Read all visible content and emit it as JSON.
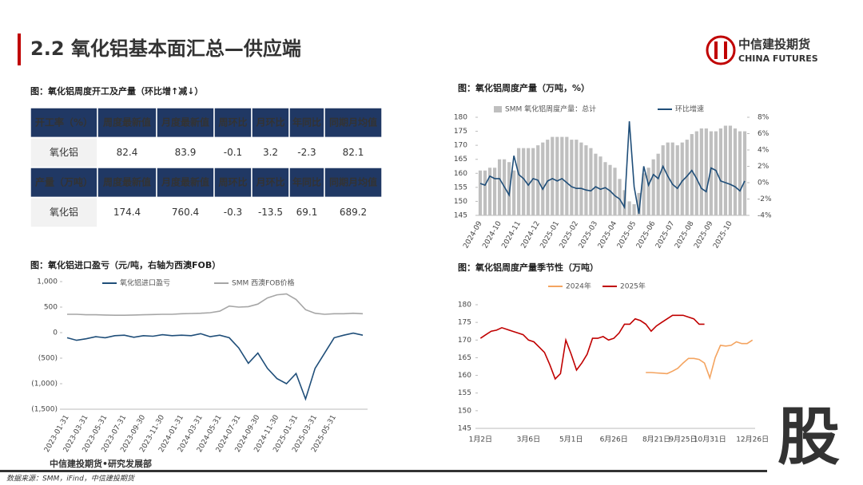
{
  "header": {
    "title": "2.2 氧化铝基本面汇总—供应端",
    "brand": "中信建投期货",
    "brand_en": "CHINA FUTURES"
  },
  "table": {
    "caption": "图：氧化铝周度开工及产量（环比增↑减↓）",
    "rows": [
      [
        "开工率（%）",
        "周度最新值",
        "月度最新值",
        "周环比",
        "月环比",
        "年同比",
        "同期月均值"
      ],
      [
        "氧化铝",
        82.4,
        83.9,
        -0.1,
        3.2,
        -2.3,
        82.1
      ],
      [
        "产量（万吨）",
        "周度最新值",
        "月度最新值",
        "周环比",
        "月环比",
        "年同比",
        "同期月均值"
      ],
      [
        "氧化铝",
        174.4,
        760.4,
        -0.3,
        -13.5,
        69.1,
        689.2
      ]
    ]
  },
  "chart_data": [
    {
      "type": "combo",
      "title": "图：氧化铝周度产量（万吨，%）",
      "categories": [
        "2024-09",
        null,
        null,
        null,
        "2024-10",
        null,
        null,
        null,
        "2024-11",
        null,
        null,
        null,
        "2024-12",
        null,
        null,
        null,
        "2025-01",
        null,
        null,
        null,
        "2025-02",
        null,
        null,
        null,
        "2025-03",
        null,
        null,
        null,
        "2025-04",
        null,
        null,
        null,
        "2025-05",
        null,
        null,
        null,
        "2025-06",
        null,
        null,
        null,
        "2025-07",
        null,
        null,
        null,
        "2025-08",
        null,
        null,
        null,
        "2025-09",
        null,
        null,
        null,
        "2025-10",
        null,
        null,
        null
      ],
      "series": [
        {
          "name": "SMM 氧化铝周度产量：总计",
          "type": "bar",
          "color": "#bfbfbf",
          "values": [
            161,
            161,
            162,
            162,
            165,
            165,
            164,
            161,
            169,
            169,
            169,
            169,
            170,
            171,
            172,
            173,
            173,
            173,
            173,
            172,
            172,
            171,
            170,
            169,
            167,
            166,
            164,
            163,
            162,
            158,
            154,
            150,
            149,
            153,
            160,
            162,
            165,
            167,
            170,
            171,
            171,
            170,
            171,
            172,
            174,
            175,
            176,
            176,
            175,
            175,
            176,
            177,
            177,
            176,
            175,
            175
          ]
        },
        {
          "name": "环比增速",
          "type": "line",
          "axis": "y2",
          "color": "#1f4e79",
          "values": [
            -0.1,
            -0.3,
            0.8,
            0.5,
            0.5,
            -0.5,
            -1.5,
            3.3,
            1,
            0.5,
            -0.3,
            0.5,
            0.3,
            -0.8,
            0.2,
            0.5,
            0.2,
            0.5,
            0,
            -0.5,
            -0.7,
            -0.7,
            -0.9,
            -1,
            -0.5,
            -0.8,
            -0.6,
            -1,
            -1.6,
            -2,
            -3,
            7.5,
            -0.5,
            -3.8,
            2,
            -0.3,
            1,
            0.5,
            2,
            0.8,
            -0.2,
            -0.7,
            0.2,
            0.8,
            1.5,
            0.5,
            -0.7,
            -1.1,
            1.8,
            1.5,
            0.2,
            0,
            -0.2,
            -0.5,
            -1,
            0.2
          ]
        }
      ],
      "ylim": [
        145,
        180
      ],
      "yticks": [
        145,
        150,
        155,
        160,
        165,
        170,
        175,
        180
      ],
      "y2lim": [
        -4,
        8
      ],
      "y2ticks": [
        {
          "value": -4,
          "label": "-4%"
        },
        {
          "value": -2,
          "label": "-2%"
        },
        {
          "value": 0,
          "label": "0%"
        },
        {
          "value": 2,
          "label": "2%"
        },
        {
          "value": 4,
          "label": "4%"
        },
        {
          "value": 6,
          "label": "6%"
        },
        {
          "value": 8,
          "label": "8%"
        }
      ]
    },
    {
      "type": "line",
      "title": "图：氧化铝进口盈亏（元/吨，右轴为西澳FOB）",
      "categories": [
        "2023-01-31",
        null,
        "2023-03-31",
        null,
        "2023-05-31",
        null,
        "2023-07-31",
        null,
        "2023-09-30",
        null,
        "2023-11-30",
        null,
        "2024-01-31",
        null,
        "2024-03-31",
        null,
        "2024-05-31",
        null,
        "2024-07-31",
        null,
        "2024-09-30",
        null,
        "2024-11-30",
        null,
        "2025-01-31",
        null,
        "2025-03-31",
        null,
        "2025-05-31",
        null,
        null,
        null
      ],
      "series": [
        {
          "name": "氧化铝进口盈亏",
          "color": "#1f4e79",
          "values": [
            -100,
            -150,
            -120,
            -80,
            -100,
            -60,
            -50,
            -90,
            -60,
            -70,
            -40,
            -60,
            -50,
            -60,
            -20,
            -80,
            -50,
            -100,
            -300,
            -600,
            -400,
            -700,
            -900,
            -1000,
            -800,
            -1300,
            -700,
            -400,
            -100,
            -50,
            -10,
            -50
          ]
        },
        {
          "name": "SMM 西澳FOB价格",
          "axis": "y2",
          "color": "#a6a6a6",
          "values": [
            360,
            360,
            350,
            350,
            345,
            340,
            340,
            345,
            350,
            355,
            360,
            360,
            370,
            375,
            380,
            390,
            420,
            520,
            500,
            510,
            560,
            680,
            740,
            760,
            650,
            450,
            380,
            360,
            370,
            370,
            380,
            370
          ]
        }
      ],
      "ylim": [
        -1500,
        1000
      ],
      "yticks": [
        {
          "value": 1000,
          "label": "1,000"
        },
        500,
        0,
        {
          "value": -500,
          "label": "(500)"
        },
        {
          "value": -1000,
          "label": "(1,000)"
        },
        {
          "value": -1500,
          "label": "(1,500)"
        }
      ],
      "y2lim": [
        -1500,
        1000
      ]
    },
    {
      "type": "line",
      "title": "图：氧化铝周度产量季节性（万吨）",
      "categories": [
        "1月2日",
        null,
        null,
        null,
        null,
        null,
        null,
        null,
        null,
        "3月6日",
        null,
        null,
        null,
        null,
        null,
        null,
        null,
        "5月1日",
        null,
        null,
        null,
        null,
        null,
        null,
        null,
        "6月26日",
        null,
        null,
        null,
        null,
        null,
        null,
        null,
        "8月21日",
        null,
        null,
        null,
        null,
        "9月25日",
        null,
        null,
        null,
        null,
        "10月31日",
        null,
        null,
        null,
        null,
        null,
        null,
        null,
        "12月26日"
      ],
      "series": [
        {
          "name": "2024年",
          "color": "#f4a460",
          "values": [
            null,
            null,
            null,
            null,
            null,
            null,
            null,
            null,
            null,
            null,
            null,
            null,
            null,
            null,
            null,
            null,
            null,
            null,
            null,
            null,
            null,
            null,
            null,
            null,
            null,
            null,
            null,
            null,
            null,
            null,
            null,
            160.8,
            160.8,
            160.7,
            160.6,
            160.5,
            161.2,
            162,
            163.5,
            164.8,
            164.8,
            164.5,
            163.5,
            159.3,
            165,
            168.5,
            168.3,
            168.5,
            169.5,
            169,
            169,
            170
          ]
        },
        {
          "name": "2025年",
          "color": "#c00000",
          "values": [
            170.5,
            171.5,
            172.5,
            172.8,
            173.5,
            173,
            172.5,
            172,
            171.5,
            170,
            169.5,
            168,
            166.5,
            163,
            159,
            160.5,
            170,
            166,
            161.5,
            163.5,
            166,
            170.5,
            170.5,
            171,
            170,
            170.5,
            172,
            174.5,
            174.5,
            176,
            175.5,
            174.5,
            172.5,
            174,
            175,
            176,
            177,
            177,
            177,
            176.5,
            176,
            174.5,
            174.5,
            null,
            null,
            null,
            null,
            null,
            null,
            null,
            null,
            null
          ]
        }
      ],
      "ylim": [
        145,
        180
      ],
      "yticks": [
        145,
        150,
        155,
        160,
        165,
        170,
        175,
        180
      ]
    }
  ],
  "footer": {
    "dept": "中信建投期货•研究发展部",
    "source": "数据来源：SMM，iFind，中信建投期货",
    "badge": "股"
  }
}
